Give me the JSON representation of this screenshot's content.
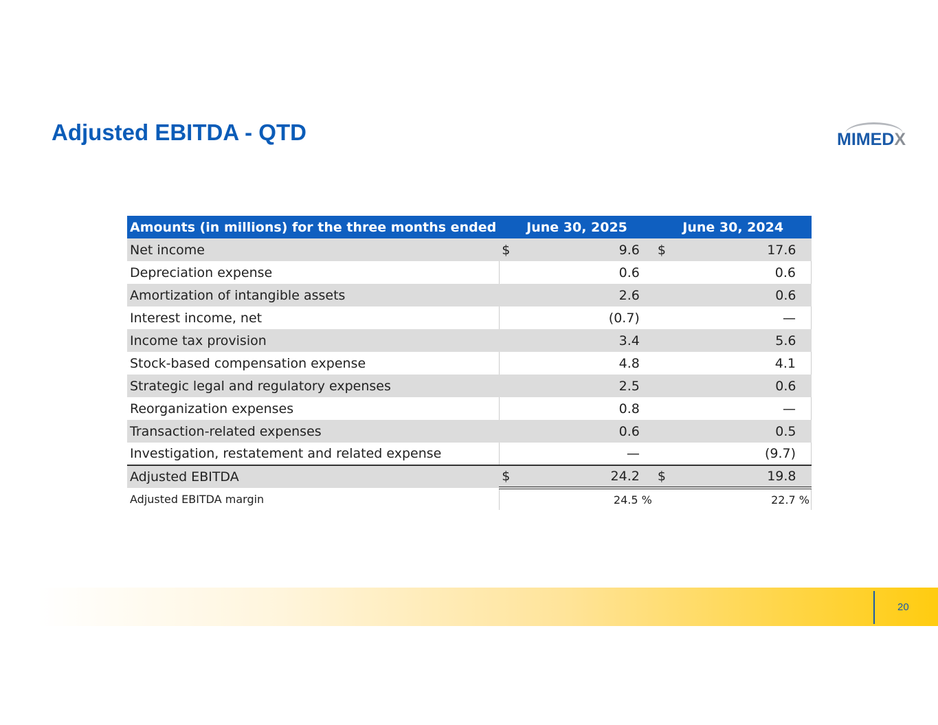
{
  "title": "Adjusted EBITDA - QTD",
  "logo_text": "MIMEDX",
  "page_number": "20",
  "colors": {
    "accent": "#0b5cb8",
    "header": "#0f5fc0",
    "band": "#ffcc10"
  },
  "table": {
    "headers": [
      "Amounts (in millions) for the three months ended",
      "June 30, 2025",
      "June 30, 2024"
    ],
    "rows": [
      {
        "label": "Net income",
        "c1": "$",
        "v1": "9.6",
        "c2": "$",
        "v2": "17.6"
      },
      {
        "label": "Depreciation expense",
        "c1": "",
        "v1": "0.6",
        "c2": "",
        "v2": "0.6"
      },
      {
        "label": "Amortization of intangible assets",
        "c1": "",
        "v1": "2.6",
        "c2": "",
        "v2": "0.6"
      },
      {
        "label": "Interest income, net",
        "c1": "",
        "v1": "(0.7)",
        "c2": "",
        "v2": "—"
      },
      {
        "label": "Income tax provision",
        "c1": "",
        "v1": "3.4",
        "c2": "",
        "v2": "5.6"
      },
      {
        "label": "Stock-based compensation expense",
        "c1": "",
        "v1": "4.8",
        "c2": "",
        "v2": "4.1"
      },
      {
        "label": "Strategic legal and regulatory expenses",
        "c1": "",
        "v1": "2.5",
        "c2": "",
        "v2": "0.6"
      },
      {
        "label": "Reorganization expenses",
        "c1": "",
        "v1": "0.8",
        "c2": "",
        "v2": "—"
      },
      {
        "label": "Transaction-related expenses",
        "c1": "",
        "v1": "0.6",
        "c2": "",
        "v2": "0.5"
      },
      {
        "label": "Investigation, restatement and related expense",
        "c1": "",
        "v1": "—",
        "c2": "",
        "v2": "(9.7)"
      },
      {
        "label": "Adjusted EBITDA",
        "c1": "$",
        "v1": "24.2",
        "c2": "$",
        "v2": "19.8"
      },
      {
        "label": "Adjusted EBITDA margin",
        "c1": "",
        "v1": "24.5 %",
        "c2": "",
        "v2": "22.7 %"
      }
    ]
  }
}
